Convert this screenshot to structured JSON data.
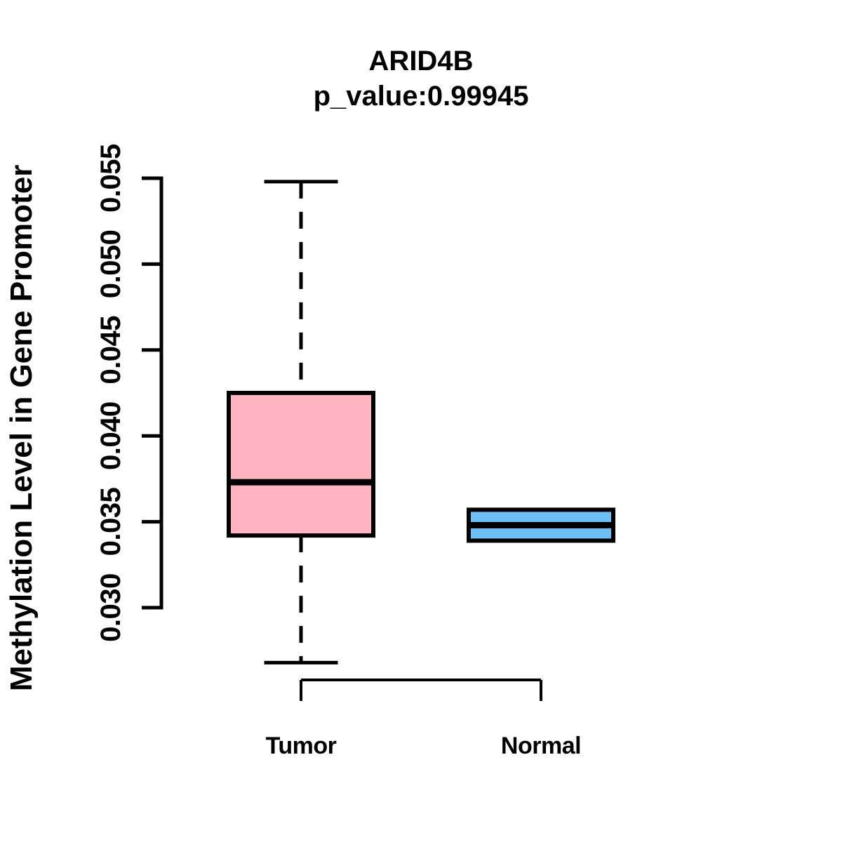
{
  "page": {
    "background": "#FFFFFF"
  },
  "chart_data": {
    "type": "boxplot",
    "title": "ARID4B",
    "subtitle": "p_value:0.99945",
    "ylabel": "Methylation Level in Gene Promoter",
    "xlabel": "",
    "categories": [
      "Tumor",
      "Normal"
    ],
    "ytick_labels": [
      "0.030",
      "0.035",
      "0.040",
      "0.045",
      "0.050",
      "0.055"
    ],
    "yticks": [
      0.03,
      0.035,
      0.04,
      0.045,
      0.05,
      0.055
    ],
    "axis_tick_range": [
      0.03,
      0.055
    ],
    "grid": false,
    "legend": "none",
    "stroke_color": "#000000",
    "series": [
      {
        "name": "Tumor",
        "fill": "#FFB3C1",
        "whisker_low": 0.0268,
        "q1": 0.0342,
        "median": 0.0373,
        "q3": 0.0425,
        "whisker_high": 0.0548,
        "whisker_style": "dashed"
      },
      {
        "name": "Normal",
        "fill": "#6DBEF5",
        "whisker_low": 0.0339,
        "q1": 0.0339,
        "median": 0.0348,
        "q3": 0.0357,
        "whisker_high": 0.0357,
        "whisker_style": "dashed"
      }
    ]
  }
}
